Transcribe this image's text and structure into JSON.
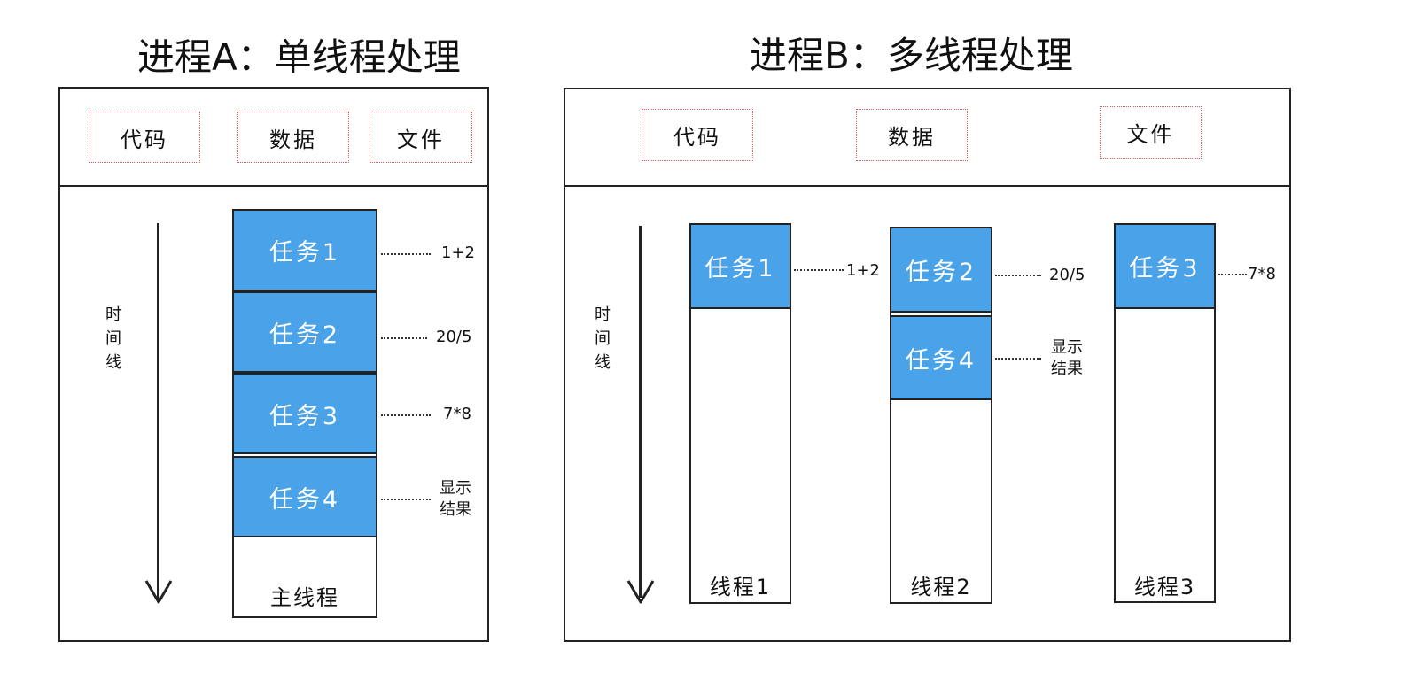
{
  "process_a": {
    "title": "进程A：单线程处理",
    "resources": [
      "代码",
      "数据",
      "文件"
    ],
    "timeline_label": "时间线",
    "thread_label": "主线程",
    "tasks": [
      {
        "label": "任务1",
        "note": "1+2"
      },
      {
        "label": "任务2",
        "note": "20/5"
      },
      {
        "label": "任务3",
        "note": "7*8"
      },
      {
        "label": "任务4",
        "note": "显示\n结果"
      }
    ]
  },
  "process_b": {
    "title": "进程B：多线程处理",
    "resources": [
      "代码",
      "数据",
      "文件"
    ],
    "timeline_label": "时间线",
    "threads": [
      {
        "label": "线程1",
        "tasks": [
          {
            "label": "任务1",
            "note": "1+2"
          }
        ]
      },
      {
        "label": "线程2",
        "tasks": [
          {
            "label": "任务2",
            "note": "20/5"
          },
          {
            "label": "任务4",
            "note": "显示\n结果"
          }
        ]
      },
      {
        "label": "线程3",
        "tasks": [
          {
            "label": "任务3",
            "note": "7*8"
          }
        ]
      }
    ]
  },
  "colors": {
    "task_fill": "#4aa3e8",
    "resource_border": "#e0585a",
    "line": "#222222"
  }
}
